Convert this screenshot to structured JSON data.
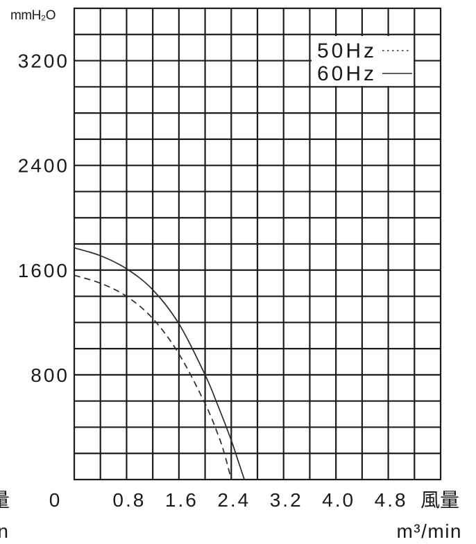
{
  "cropped_labels": [
    "量",
    "n"
  ],
  "chart_data": {
    "type": "line",
    "y_unit": "mmH₂O",
    "xlabel": "風量",
    "x_unit": "m³/min",
    "xlim": [
      0,
      5.6
    ],
    "ylim": [
      0,
      3600
    ],
    "x_grid_step": 0.4,
    "y_grid_step": 200,
    "grid": true,
    "legend_position": "top-right",
    "x_ticks": [
      {
        "value": 0,
        "label": "0"
      },
      {
        "value": 0.8,
        "label": "0.8"
      },
      {
        "value": 1.6,
        "label": "1.6"
      },
      {
        "value": 2.4,
        "label": "2.4"
      },
      {
        "value": 3.2,
        "label": "3.2"
      },
      {
        "value": 4.0,
        "label": "4.0"
      },
      {
        "value": 4.8,
        "label": "4.8"
      }
    ],
    "y_ticks": [
      {
        "value": 800,
        "label": "800"
      },
      {
        "value": 1600,
        "label": "1600"
      },
      {
        "value": 2400,
        "label": "2400"
      },
      {
        "value": 3200,
        "label": "3200"
      }
    ],
    "series": [
      {
        "name": "50Hz",
        "line_style": "dashed",
        "x": [
          0,
          0.4,
          0.8,
          1.2,
          1.6,
          2.0,
          2.2,
          2.3,
          2.4
        ],
        "y": [
          1560,
          1500,
          1400,
          1230,
          960,
          580,
          340,
          190,
          0
        ]
      },
      {
        "name": "60Hz",
        "line_style": "solid",
        "x": [
          0,
          0.4,
          0.8,
          1.2,
          1.6,
          2.0,
          2.2,
          2.4,
          2.5,
          2.6
        ],
        "y": [
          1770,
          1710,
          1610,
          1450,
          1190,
          800,
          560,
          300,
          150,
          0
        ]
      }
    ],
    "colors": {
      "grid": "#1c1c1c",
      "curve": "#2b2b2b",
      "background": "#ffffff"
    }
  }
}
